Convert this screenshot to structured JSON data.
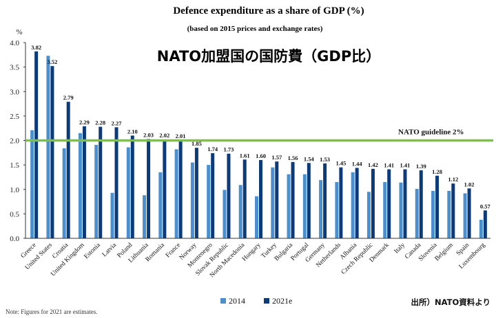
{
  "chart_data": {
    "type": "bar",
    "title": "Defence expenditure as a share of GDP (%)",
    "subtitle": "(based on 2015 prices and exchange rates)",
    "overlay_title": "NATO加盟国の国防費（GDP比）",
    "ylabel": "%",
    "ylim": [
      0,
      4.0
    ],
    "yticks": [
      "0.0",
      "0.5",
      "1.0",
      "1.5",
      "2.0",
      "2.5",
      "3.0",
      "3.5",
      "4.0"
    ],
    "categories": [
      "Greece",
      "United States",
      "Croatia",
      "United Kingdom",
      "Estonia",
      "Latvia",
      "Poland",
      "Lithuania",
      "Romania",
      "France",
      "Norway",
      "Montenegro",
      "Slovak Republic",
      "North Macedonia",
      "Hungary",
      "Turkey",
      "Bulgaria",
      "Portugal",
      "Germany",
      "Netherlands",
      "Albania",
      "Czech Republic",
      "Denmark",
      "Italy",
      "Canada",
      "Slovenia",
      "Belgium",
      "Spain",
      "Luxembourg"
    ],
    "series": [
      {
        "name": "2014",
        "color": "#4a90d0",
        "values": [
          2.21,
          3.73,
          1.84,
          2.15,
          1.91,
          0.93,
          1.86,
          0.88,
          1.35,
          1.82,
          1.55,
          1.5,
          0.99,
          1.09,
          0.86,
          1.45,
          1.31,
          1.31,
          1.19,
          1.15,
          1.35,
          0.95,
          1.15,
          1.14,
          1.01,
          0.97,
          0.97,
          0.92,
          0.38
        ]
      },
      {
        "name": "2021e",
        "color": "#0d3a78",
        "values": [
          3.82,
          3.52,
          2.79,
          2.29,
          2.28,
          2.27,
          2.1,
          2.03,
          2.02,
          2.01,
          1.85,
          1.74,
          1.73,
          1.61,
          1.6,
          1.57,
          1.56,
          1.54,
          1.53,
          1.45,
          1.44,
          1.42,
          1.41,
          1.41,
          1.39,
          1.28,
          1.12,
          1.02,
          0.57
        ]
      }
    ],
    "data_labels": [
      "3.82",
      "3.52",
      "2.79",
      "2.29",
      "2.28",
      "2.27",
      "2.10",
      "2.03",
      "2.02",
      "2.01",
      "1.85",
      "1.74",
      "1.73",
      "1.61",
      "1.60",
      "1.57",
      "1.56",
      "1.54",
      "1.53",
      "1.45",
      "1.44",
      "1.42",
      "1.41",
      "1.41",
      "1.39",
      "1.28",
      "1.12",
      "1.02",
      "0.57"
    ],
    "guideline": {
      "value": 2.0,
      "label": "NATO guideline 2%",
      "color": "#7dc242"
    },
    "legend": [
      "2014",
      "2021e"
    ],
    "legend_position": "bottom-center",
    "grid": false
  },
  "note": "Note: Figures for 2021 are estimates.",
  "source": "出所）NATO資料より"
}
